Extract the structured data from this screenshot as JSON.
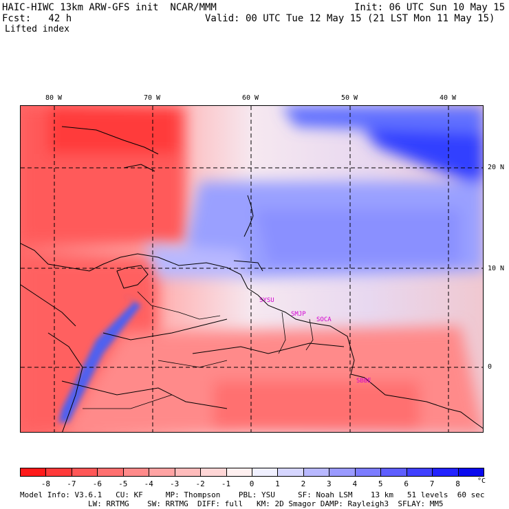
{
  "header": {
    "title_left": "HAIC-HIWC 13km ARW-GFS init  NCAR/MMM",
    "init": "Init: 06 UTC Sun 10 May 15",
    "fcst": "Fcst:   42 h",
    "valid": "Valid: 00 UTC Tue 12 May 15 (21 LST Mon 11 May 15)",
    "field": "Lifted index"
  },
  "axes": {
    "lon_labels": [
      "80 W",
      "70 W",
      "60 W",
      "50 W",
      "40 W"
    ],
    "lat_labels": [
      "20 N",
      "10 N",
      "0"
    ]
  },
  "stations": [
    "SYSU",
    "SMJP",
    "SOCA",
    "SBBE"
  ],
  "colorbar": {
    "ticks": [
      "-8",
      "-7",
      "-6",
      "-5",
      "-4",
      "-3",
      "-2",
      "-1",
      "0",
      "1",
      "2",
      "3",
      "4",
      "5",
      "6",
      "7",
      "8"
    ],
    "unit": "°C",
    "colors": [
      "#ff1a1a",
      "#ff3a3a",
      "#ff5757",
      "#ff7070",
      "#ff8a8a",
      "#ffa3a3",
      "#ffbcbc",
      "#ffd6d6",
      "#fff0f0",
      "#f0f0ff",
      "#d6d6ff",
      "#b8b8ff",
      "#9a9aff",
      "#7c7cff",
      "#5e5eff",
      "#4040ff",
      "#2222ff",
      "#0a0aee"
    ]
  },
  "footer": {
    "line1": "Model Info: V3.6.1   CU: KF     MP: Thompson    PBL: YSU     SF: Noah LSM    13 km   51 levels  60 sec",
    "line2": "LW: RRTMG    SW: RRTMG  DIFF: full   KM: 2D Smagor DAMP: Rayleigh3  SFLAY: MM5"
  }
}
